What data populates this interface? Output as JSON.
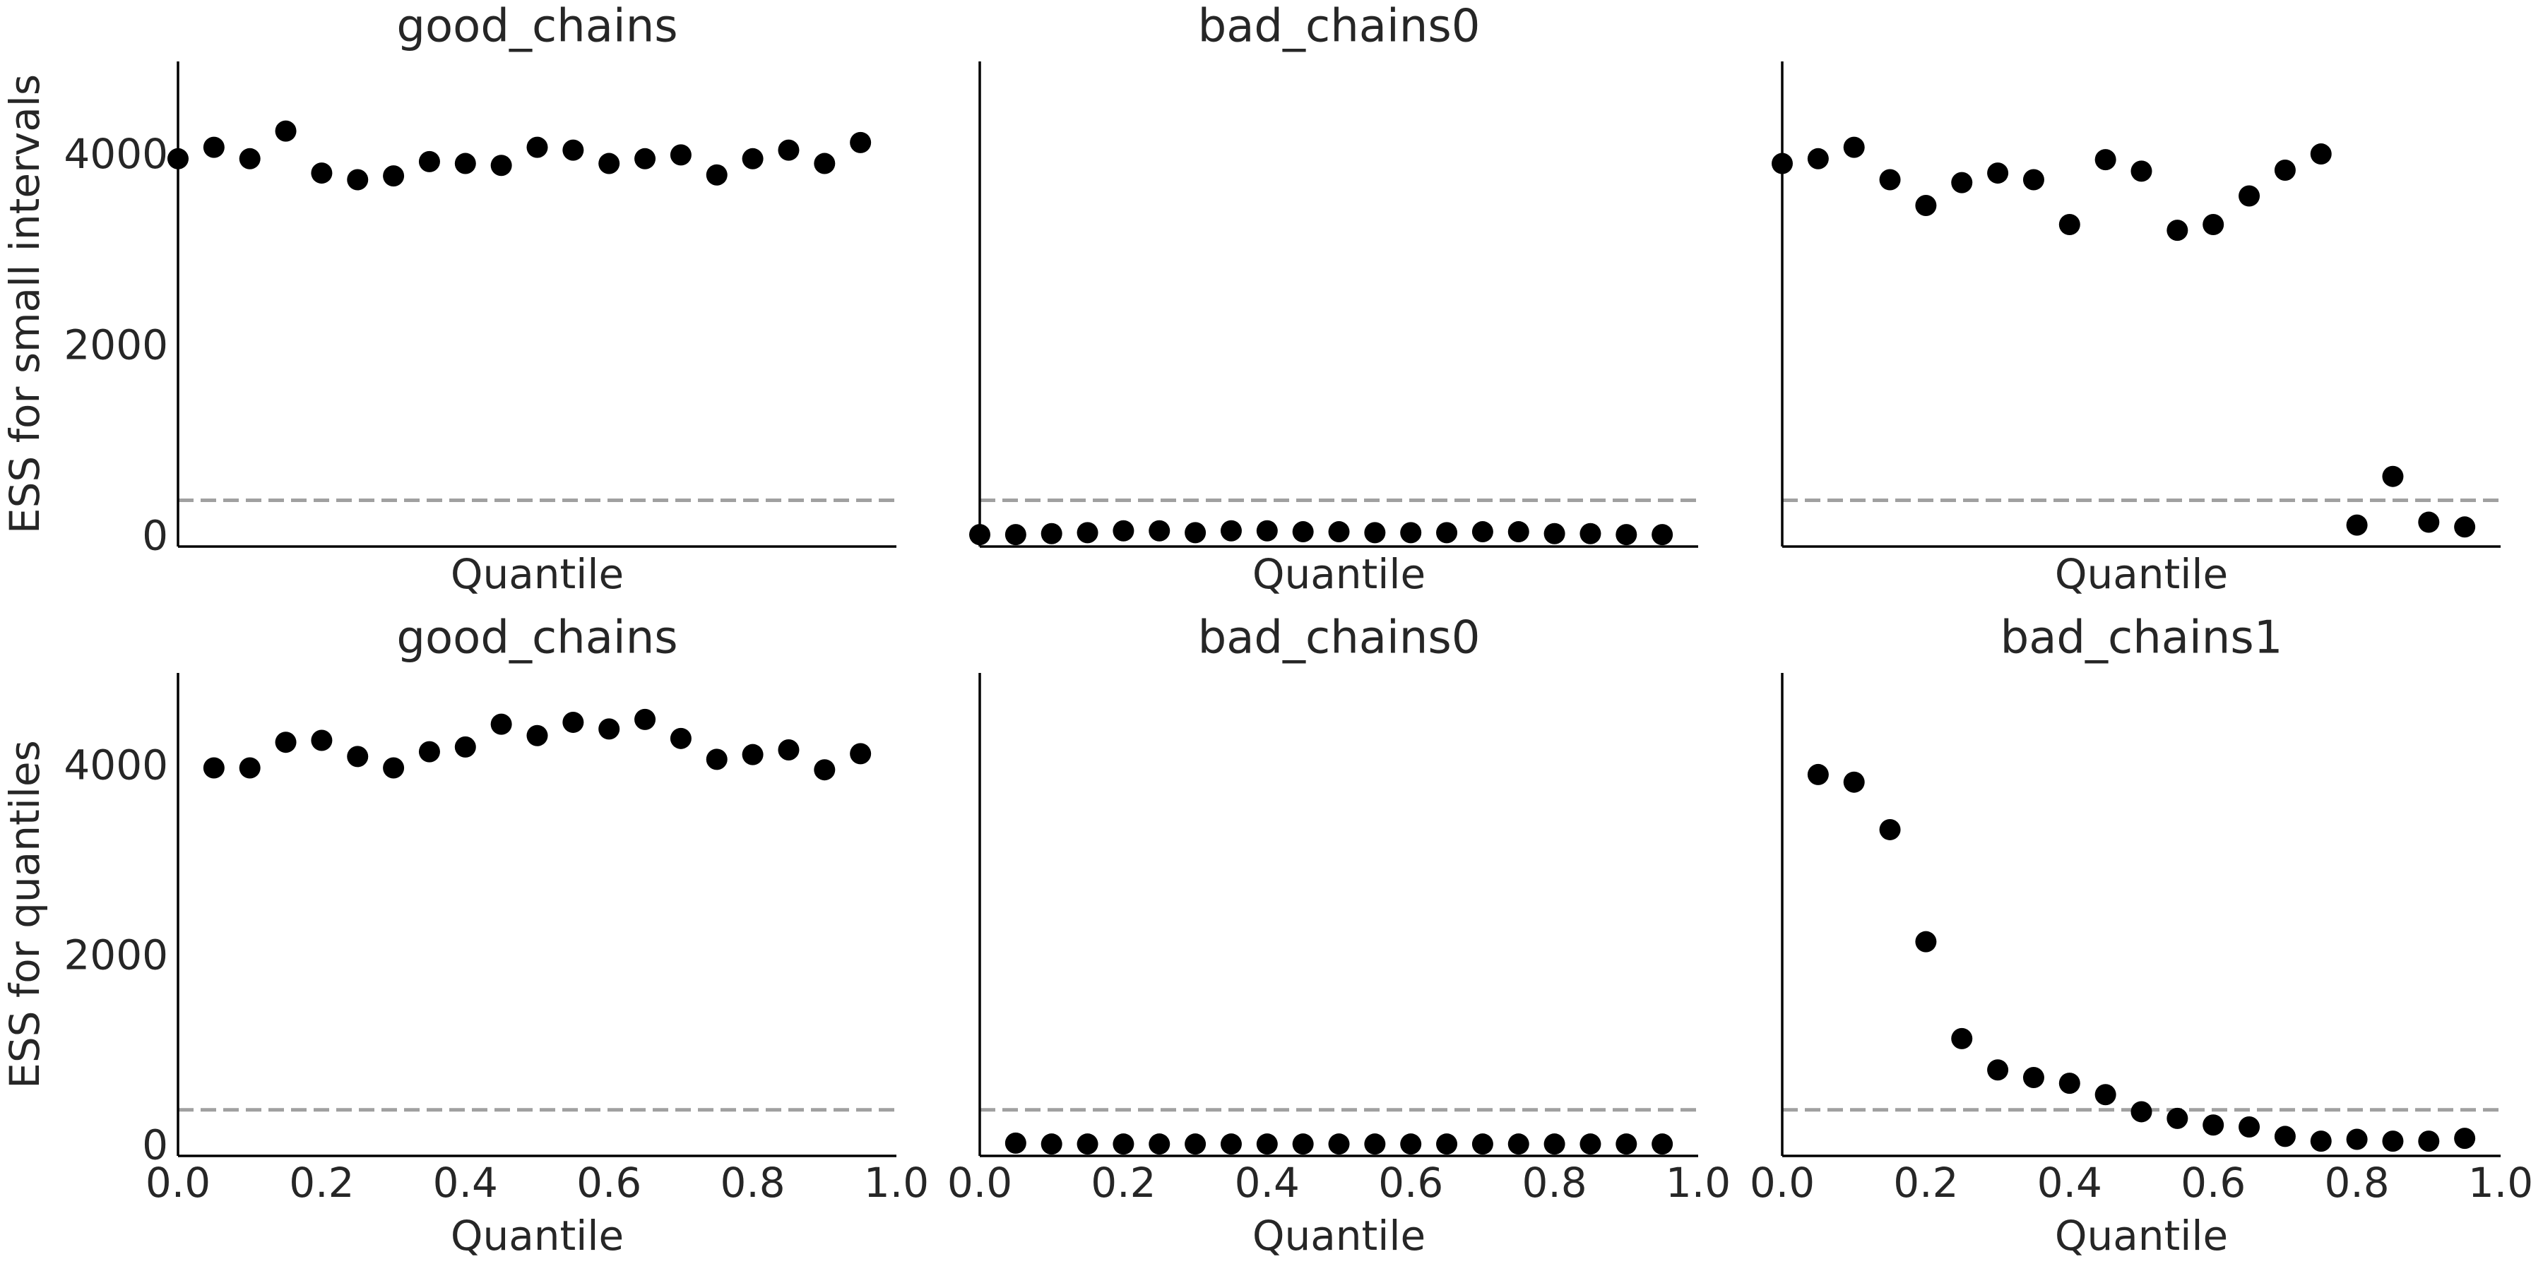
{
  "chart_data": [
    {
      "type": "scatter",
      "title": "good_chains",
      "xlabel": "Quantile",
      "ylabel": "ESS for small intervals",
      "x": [
        0.0,
        0.05,
        0.1,
        0.15,
        0.2,
        0.25,
        0.3,
        0.35,
        0.4,
        0.45,
        0.5,
        0.55,
        0.6,
        0.65,
        0.7,
        0.75,
        0.8,
        0.85,
        0.9,
        0.95
      ],
      "values": [
        3980,
        4100,
        3980,
        4270,
        3830,
        3760,
        3800,
        3950,
        3930,
        3910,
        4100,
        4070,
        3930,
        3980,
        4020,
        3810,
        3980,
        4070,
        3930,
        4150
      ],
      "color": "#000000",
      "xlim": [
        0,
        1
      ],
      "ylim": [
        -85,
        5000
      ],
      "yticks": [
        0,
        2000,
        4000
      ],
      "ref_line": 400,
      "ref_color": "#a0a0a0"
    },
    {
      "type": "scatter",
      "title": "bad_chains0",
      "xlabel": "Quantile",
      "x": [
        0.0,
        0.05,
        0.1,
        0.15,
        0.2,
        0.25,
        0.3,
        0.35,
        0.4,
        0.45,
        0.5,
        0.55,
        0.6,
        0.65,
        0.7,
        0.75,
        0.8,
        0.85,
        0.9,
        0.95
      ],
      "values": [
        40,
        40,
        50,
        60,
        80,
        80,
        60,
        80,
        80,
        70,
        70,
        60,
        60,
        60,
        70,
        70,
        50,
        50,
        40,
        40
      ],
      "color": "#000000",
      "xlim": [
        0,
        1
      ],
      "ylim": [
        -85,
        5000
      ],
      "ref_line": 400,
      "ref_color": "#a0a0a0"
    },
    {
      "type": "scatter",
      "xlabel": "Quantile",
      "x": [
        0.0,
        0.05,
        0.1,
        0.15,
        0.2,
        0.25,
        0.3,
        0.35,
        0.4,
        0.45,
        0.5,
        0.55,
        0.6,
        0.65,
        0.7,
        0.75,
        0.8,
        0.85,
        0.9,
        0.95
      ],
      "values": [
        3930,
        3980,
        4100,
        3760,
        3490,
        3730,
        3830,
        3760,
        3290,
        3970,
        3850,
        3230,
        3290,
        3590,
        3860,
        4030,
        140,
        650,
        170,
        120
      ],
      "color": "#000000",
      "xlim": [
        0,
        1
      ],
      "ylim": [
        -85,
        5000
      ],
      "ref_line": 400,
      "ref_color": "#a0a0a0"
    },
    {
      "type": "scatter",
      "title": "good_chains",
      "xlabel": "Quantile",
      "ylabel": "ESS for quantiles",
      "x": [
        0.05,
        0.1,
        0.15,
        0.2,
        0.25,
        0.3,
        0.35,
        0.4,
        0.45,
        0.5,
        0.55,
        0.6,
        0.65,
        0.7,
        0.75,
        0.8,
        0.85,
        0.9,
        0.95
      ],
      "values": [
        4000,
        4000,
        4270,
        4290,
        4120,
        4000,
        4170,
        4220,
        4460,
        4340,
        4480,
        4410,
        4510,
        4310,
        4090,
        4140,
        4190,
        3980,
        4150
      ],
      "color": "#000000",
      "xlim": [
        0,
        1
      ],
      "ylim": [
        -85,
        5000
      ],
      "yticks": [
        0,
        2000,
        4000
      ],
      "xticks": [
        {
          "value": 0,
          "label": "0.0"
        },
        {
          "value": 0.2,
          "label": "0.2"
        },
        {
          "value": 0.4,
          "label": "0.4"
        },
        {
          "value": 0.6,
          "label": "0.6"
        },
        {
          "value": 0.8,
          "label": "0.8"
        },
        {
          "value": 1,
          "label": "1.0"
        }
      ],
      "ref_line": 400,
      "ref_color": "#a0a0a0"
    },
    {
      "type": "scatter",
      "title": "bad_chains0",
      "xlabel": "Quantile",
      "x": [
        0.05,
        0.1,
        0.15,
        0.2,
        0.25,
        0.3,
        0.35,
        0.4,
        0.45,
        0.5,
        0.55,
        0.6,
        0.65,
        0.7,
        0.75,
        0.8,
        0.85,
        0.9,
        0.95
      ],
      "values": [
        50,
        40,
        40,
        40,
        40,
        40,
        40,
        40,
        40,
        40,
        40,
        40,
        40,
        40,
        40,
        40,
        40,
        40,
        40
      ],
      "color": "#000000",
      "xlim": [
        0,
        1
      ],
      "ylim": [
        -85,
        5000
      ],
      "xticks": [
        {
          "value": 0,
          "label": "0.0"
        },
        {
          "value": 0.2,
          "label": "0.2"
        },
        {
          "value": 0.4,
          "label": "0.4"
        },
        {
          "value": 0.6,
          "label": "0.6"
        },
        {
          "value": 0.8,
          "label": "0.8"
        },
        {
          "value": 1,
          "label": "1.0"
        }
      ],
      "ref_line": 400,
      "ref_color": "#a0a0a0"
    },
    {
      "type": "scatter",
      "title": "bad_chains1",
      "xlabel": "Quantile",
      "x": [
        0.05,
        0.1,
        0.15,
        0.2,
        0.25,
        0.3,
        0.35,
        0.4,
        0.45,
        0.5,
        0.55,
        0.6,
        0.65,
        0.7,
        0.75,
        0.8,
        0.85,
        0.9,
        0.95
      ],
      "values": [
        3930,
        3850,
        3350,
        2170,
        1150,
        820,
        740,
        680,
        560,
        380,
        310,
        240,
        220,
        120,
        70,
        90,
        70,
        70,
        100
      ],
      "color": "#000000",
      "xlim": [
        0,
        1
      ],
      "ylim": [
        -85,
        5000
      ],
      "xticks": [
        {
          "value": 0,
          "label": "0.0"
        },
        {
          "value": 0.2,
          "label": "0.2"
        },
        {
          "value": 0.4,
          "label": "0.4"
        },
        {
          "value": 0.6,
          "label": "0.6"
        },
        {
          "value": 0.8,
          "label": "0.8"
        },
        {
          "value": 1,
          "label": "1.0"
        }
      ],
      "ref_line": 400,
      "ref_color": "#a0a0a0"
    }
  ]
}
